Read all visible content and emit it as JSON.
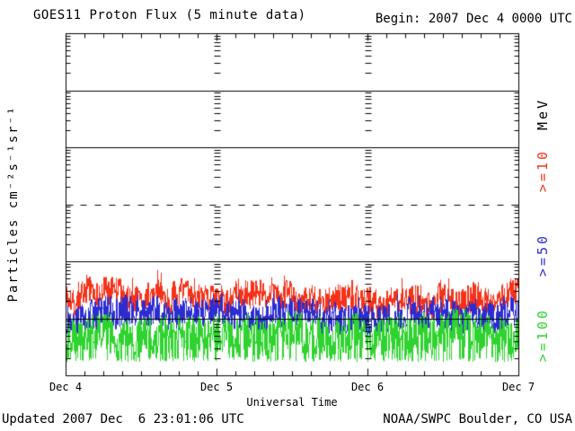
{
  "header": {
    "title": "GOES11 Proton Flux (5 minute data)",
    "begin": "Begin: 2007 Dec 4 0000 UTC"
  },
  "footer": {
    "updated": "Updated 2007 Dec  6 23:01:06 UTC",
    "credit": "NOAA/SWPC Boulder, CO USA"
  },
  "colors": {
    "frame": "#000000",
    "background": "#ffffff",
    "red_series": "#f53219",
    "blue_series": "#2c2cd2",
    "green_series": "#2fd32f"
  },
  "chart_data": {
    "type": "line",
    "title": "GOES11 Proton Flux (5 minute data)",
    "xlabel": "Universal Time",
    "ylabel": "Particles cm⁻²s⁻¹sr⁻¹",
    "right_axis_label": "MeV",
    "y_scale": "log",
    "ylim": [
      0.01,
      10000
    ],
    "y_tick_exponents": [
      4,
      3,
      2,
      1,
      0,
      -1,
      -2
    ],
    "x_ticks": [
      {
        "label": "Dec 4",
        "day": 0
      },
      {
        "label": "Dec 5",
        "day": 1
      },
      {
        "label": "Dec 6",
        "day": 2
      },
      {
        "label": "Dec 7",
        "day": 3
      }
    ],
    "x_minor_tick_hours": 3,
    "duration_days": 3,
    "cadence_minutes": 5,
    "begin_time": "2007 Dec 4 0000 UTC",
    "grid": {
      "solid_exponents": [
        3,
        2,
        0,
        -1
      ],
      "dashed_exponents": [
        1
      ],
      "day_minor_tick_columns": [
        1,
        2
      ]
    },
    "series": [
      {
        "label": ">=10",
        "energy": ">=10 MeV",
        "color": "#f53219",
        "median_flux": 0.23,
        "flux_range": [
          0.11,
          0.55
        ],
        "log10_mean": -0.63,
        "log10_spread": 0.25,
        "spike_prob": 0.05,
        "spike_boost": 0.2,
        "drop_prob": 0,
        "drop_floor": -2,
        "seed": 7
      },
      {
        "label": ">=50",
        "energy": ">=50 MeV",
        "color": "#2c2cd2",
        "median_flux": 0.11,
        "flux_range": [
          0.05,
          0.28
        ],
        "log10_mean": -0.95,
        "log10_spread": 0.28,
        "spike_prob": 0.04,
        "spike_boost": 0.15,
        "drop_prob": 0,
        "drop_floor": -2,
        "seed": 13
      },
      {
        "label": ">=100",
        "energy": ">=100 MeV",
        "color": "#2fd32f",
        "median_flux": 0.05,
        "flux_range": [
          0.017,
          0.115
        ],
        "log10_mean": -1.3,
        "log10_spread": 0.36,
        "spike_prob": 0.0,
        "spike_boost": 0,
        "drop_prob": 0.3,
        "drop_floor": -1.76,
        "seed": 29
      }
    ]
  }
}
